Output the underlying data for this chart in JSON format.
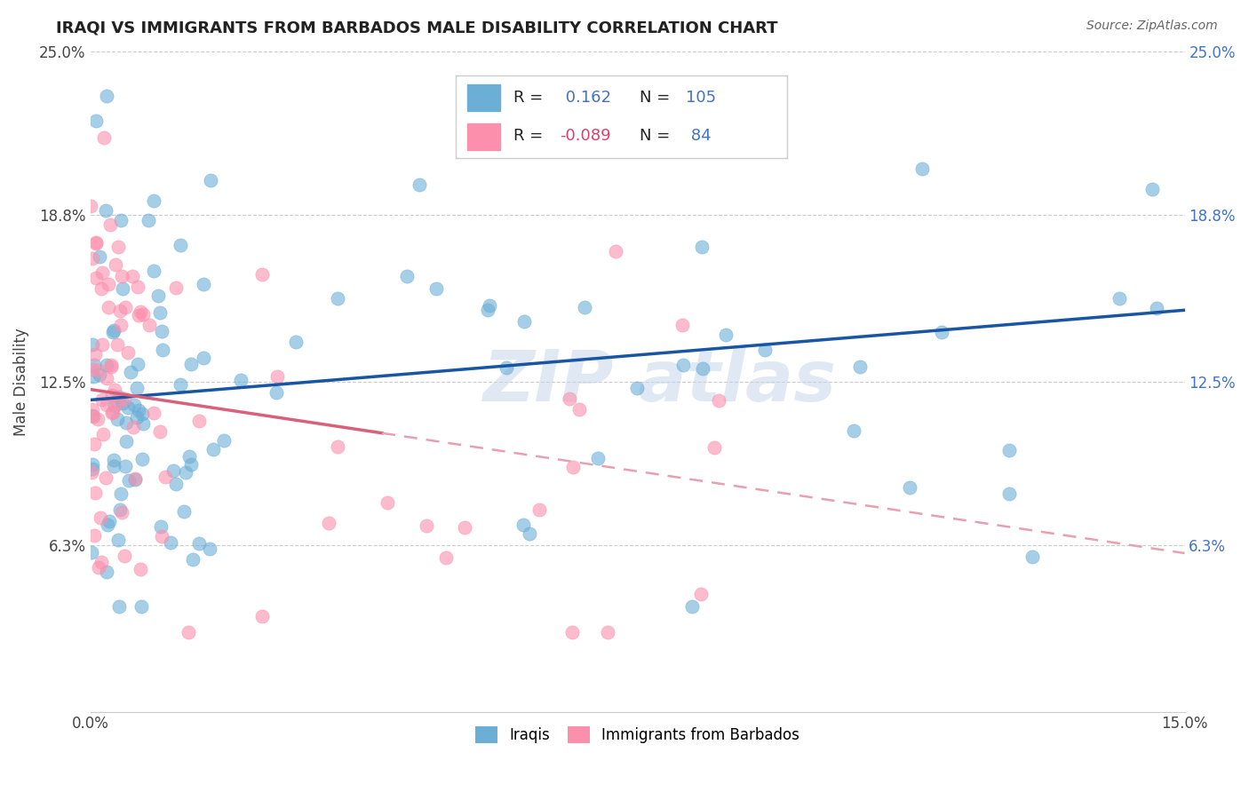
{
  "title": "IRAQI VS IMMIGRANTS FROM BARBADOS MALE DISABILITY CORRELATION CHART",
  "source": "Source: ZipAtlas.com",
  "ylabel": "Male Disability",
  "legend_label_1": "Iraqis",
  "legend_label_2": "Immigrants from Barbados",
  "r1": 0.162,
  "n1": 105,
  "r2": -0.089,
  "n2": 84,
  "color1": "#6baed6",
  "color2": "#fc8fac",
  "trendline1_color": "#1855a3",
  "trendline2_solid_color": "#d95f7a",
  "trendline2_dash_color": "#e8a0b0",
  "xmin": 0.0,
  "xmax": 0.15,
  "ymin": 0.0,
  "ymax": 0.25,
  "ytick_labels_left": [
    "",
    "6.3%",
    "12.5%",
    "18.8%",
    "25.0%"
  ],
  "ytick_labels_right": [
    "",
    "6.3%",
    "12.5%",
    "18.8%",
    "25.0%"
  ],
  "ytick_values": [
    0.0,
    0.063,
    0.125,
    0.188,
    0.25
  ],
  "xtick_labels": [
    "0.0%",
    "15.0%"
  ],
  "xtick_values": [
    0.0,
    0.15
  ],
  "trendline1_y0": 0.118,
  "trendline1_y1": 0.152,
  "trendline2_y0": 0.122,
  "trendline2_y1": 0.06,
  "trendline2_solid_x_end": 0.04
}
